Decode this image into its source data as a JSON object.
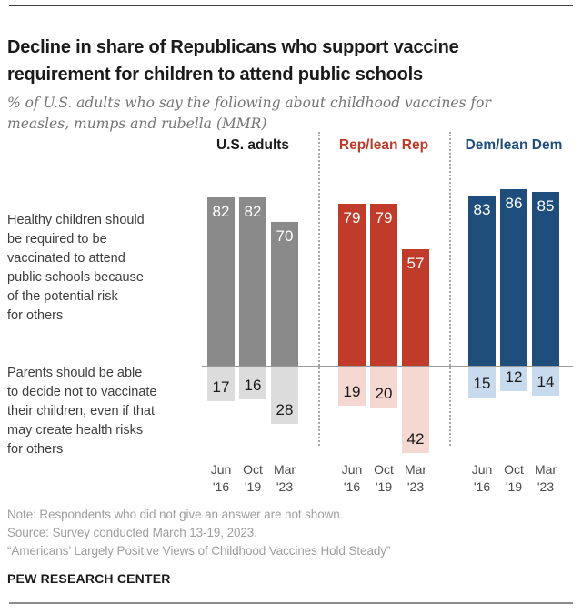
{
  "header": {
    "title": "Decline in share of Republicans who support vaccine requirement for children to attend public schools",
    "subtitle": "% of U.S. adults who say the following about childhood vaccines for measles, mumps and rubella (MMR)"
  },
  "chart_data": {
    "type": "bar",
    "subtype": "diverging-grouped",
    "unit": "% of U.S. adults",
    "categories": [
      "Jun\n'16",
      "Oct\n'19",
      "Mar\n'23"
    ],
    "statements": {
      "above_baseline": "Healthy children should\nbe required to be\nvaccinated to attend\npublic schools because\nof the potential risk\nfor others",
      "below_baseline": "Parents should be able\nto decide not to vaccinate\ntheir children, even if that\nmay create health risks\nfor others"
    },
    "groups": [
      {
        "label": "U.S. adults",
        "label_color": "#1a1a1a",
        "bar_color": "#8a8a8a",
        "bar_color_light": "#dcdcdc",
        "require_values": [
          82,
          82,
          70
        ],
        "decide_values": [
          17,
          16,
          28
        ]
      },
      {
        "label": "Rep/lean Rep",
        "label_color": "#bf3927",
        "bar_color": "#c13b2a",
        "bar_color_light": "#f5d8d1",
        "require_values": [
          79,
          79,
          57
        ],
        "decide_values": [
          19,
          20,
          42
        ]
      },
      {
        "label": "Dem/lean Dem",
        "label_color": "#1f4e7c",
        "bar_color": "#1f4e7c",
        "bar_color_light": "#c8daee",
        "require_values": [
          83,
          86,
          85
        ],
        "decide_values": [
          15,
          12,
          14
        ]
      }
    ],
    "value_label_colors": {
      "on_dark": "#ffffff",
      "on_light": "#1a1a1a"
    },
    "axis": {
      "baseline_value": 0,
      "grid": false,
      "legend": "none"
    }
  },
  "footer": {
    "note": "Note: Respondents who did not give an answer are not shown.",
    "source": "Source: Survey conducted March 13-19, 2023.",
    "report": "“Americans’ Largely Positive Views of Childhood Vaccines Hold Steady”",
    "brand": "PEW RESEARCH CENTER"
  }
}
